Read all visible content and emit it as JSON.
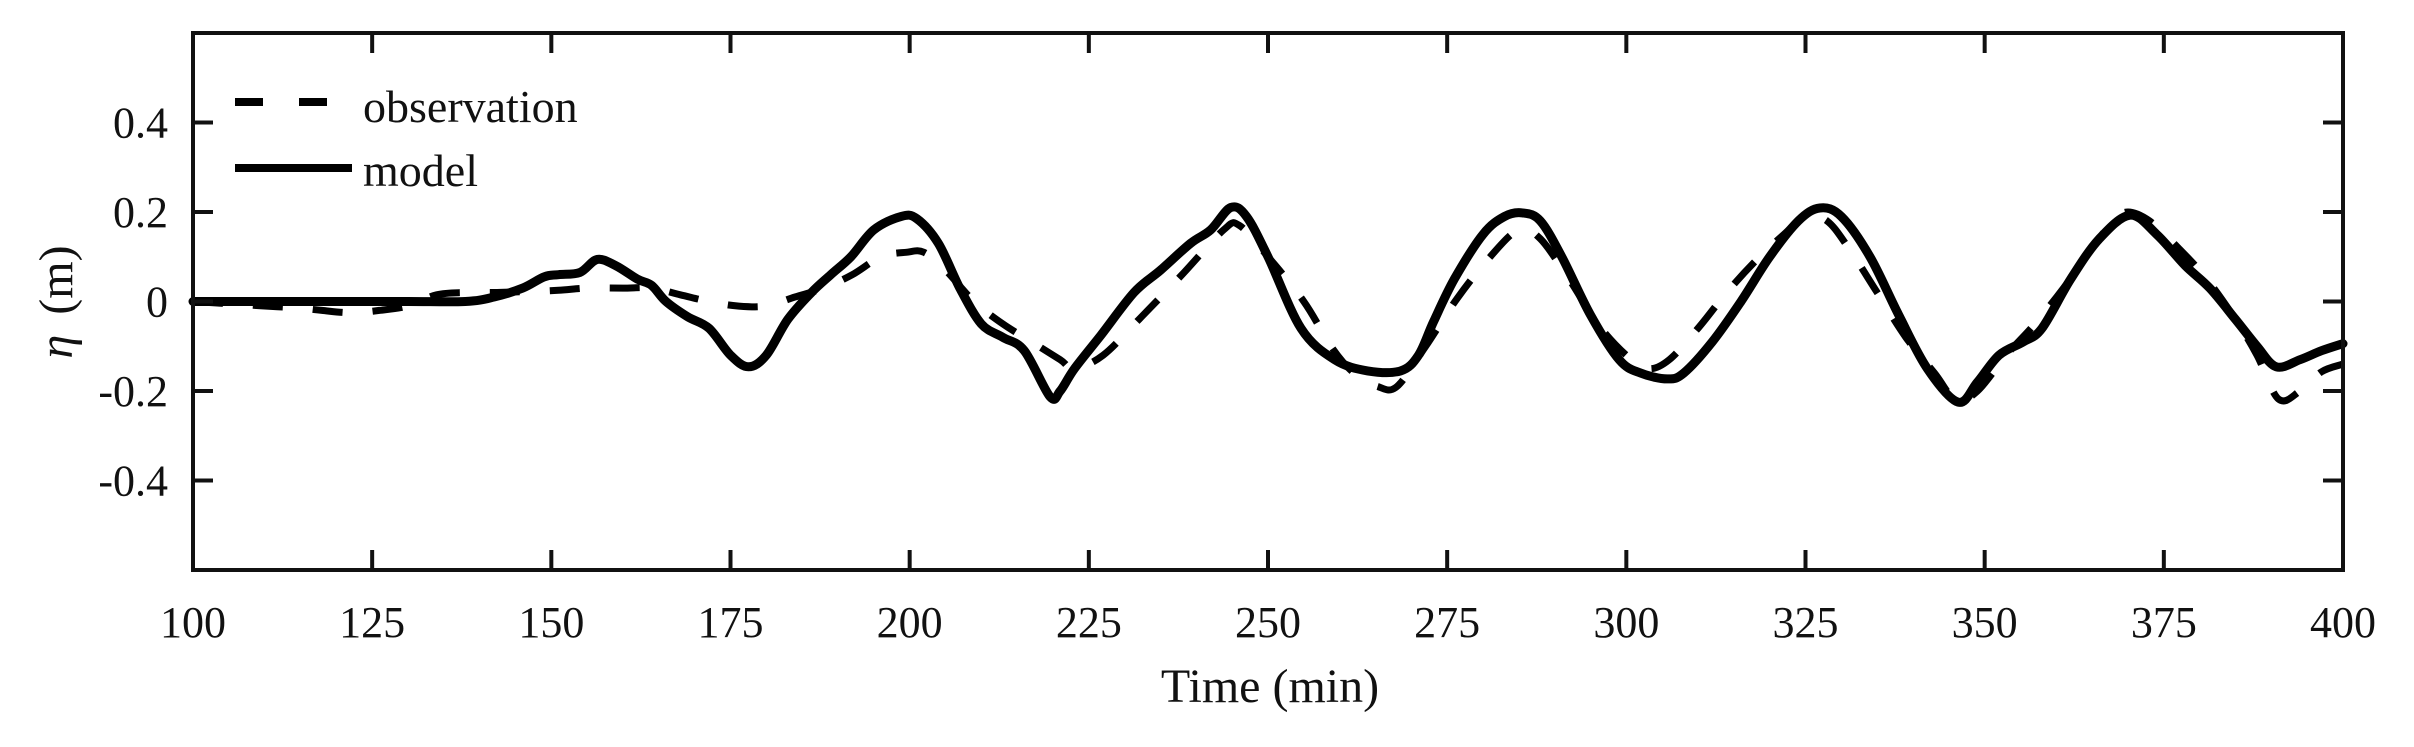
{
  "chart_data": {
    "type": "line",
    "title": "",
    "xlabel": "Time (min)",
    "ylabel_symbol": "η",
    "ylabel_unit": "(m)",
    "ylabel": "η (m)",
    "xlim": [
      100,
      400
    ],
    "ylim": [
      -0.6,
      0.6
    ],
    "xticks": [
      100,
      125,
      150,
      175,
      200,
      225,
      250,
      275,
      300,
      325,
      350,
      375,
      400
    ],
    "xtick_labels": [
      "100",
      "125",
      "150",
      "175",
      "200",
      "225",
      "250",
      "275",
      "300",
      "325",
      "350",
      "375",
      "400"
    ],
    "yticks": [
      -0.4,
      -0.2,
      0,
      0.2,
      0.4
    ],
    "ytick_labels": [
      "-0.4",
      "-0.2",
      "0",
      "0.2",
      "0.4"
    ],
    "grid": false,
    "legend_position": "upper left",
    "series": [
      {
        "name": "observation",
        "style": "dashed",
        "color": "#000000",
        "x": [
          100,
          105,
          110,
          115,
          118,
          122,
          126,
          130,
          134,
          138,
          142,
          146,
          151,
          155,
          160,
          164,
          168,
          172,
          176,
          180,
          184,
          188,
          192,
          196,
          199.5,
          202,
          205,
          209,
          213,
          217,
          221,
          223,
          227,
          232,
          238,
          243.8,
          246,
          250,
          255,
          259,
          262,
          265.3,
          268,
          272,
          276.4,
          281,
          285,
          288,
          292,
          296,
          300,
          303,
          306,
          310,
          314,
          318,
          322,
          325,
          328,
          331,
          335,
          339,
          343,
          346,
          349,
          353,
          357,
          361,
          365,
          368,
          370,
          373,
          377,
          381,
          385,
          388,
          391,
          394,
          397,
          400
        ],
        "y": [
          0.0,
          -0.005,
          -0.01,
          -0.015,
          -0.02,
          -0.025,
          -0.02,
          -0.01,
          0.015,
          0.02,
          0.02,
          0.022,
          0.025,
          0.03,
          0.03,
          0.03,
          0.015,
          0.0,
          -0.01,
          -0.01,
          0.01,
          0.03,
          0.06,
          0.1,
          0.11,
          0.11,
          0.07,
          0.0,
          -0.05,
          -0.09,
          -0.13,
          -0.15,
          -0.12,
          -0.04,
          0.06,
          0.16,
          0.17,
          0.1,
          0.0,
          -0.105,
          -0.16,
          -0.19,
          -0.19,
          -0.1,
          0.007,
          0.1,
          0.16,
          0.14,
          0.05,
          -0.05,
          -0.12,
          -0.15,
          -0.13,
          -0.06,
          0.02,
          0.09,
          0.15,
          0.19,
          0.18,
          0.12,
          0.02,
          -0.08,
          -0.16,
          -0.22,
          -0.2,
          -0.12,
          -0.05,
          0.03,
          0.12,
          0.18,
          0.2,
          0.18,
          0.12,
          0.05,
          -0.04,
          -0.12,
          -0.218,
          -0.2,
          -0.157,
          -0.14
        ]
      },
      {
        "name": "model",
        "style": "solid",
        "color": "#000000",
        "x": [
          100,
          110,
          120,
          130,
          138,
          142,
          146,
          149,
          151,
          154,
          156.4,
          159,
          162,
          164,
          166,
          169,
          172,
          175,
          177.5,
          180,
          183,
          186.3,
          189,
          191.8,
          195,
          198.8,
          201,
          204,
          207,
          210,
          213,
          216,
          219.6,
          221,
          223,
          226.7,
          231.3,
          235,
          239.2,
          242,
          244.8,
          247,
          250,
          254.6,
          259.3,
          263.9,
          268.5,
          271,
          273.1,
          276,
          280,
          283,
          285.5,
          288,
          291,
          295,
          299,
          302,
          305.7,
          308,
          312,
          316,
          320,
          324,
          327,
          330,
          334,
          338,
          342,
          346.3,
          349,
          352,
          355.4,
          358,
          362,
          366,
          370.3,
          374,
          378,
          381.4,
          385,
          388,
          390.7,
          394,
          397,
          400
        ],
        "y": [
          0.0,
          0.0,
          0.0,
          0.0,
          0.0,
          0.01,
          0.03,
          0.055,
          0.06,
          0.065,
          0.094,
          0.08,
          0.05,
          0.036,
          0.0,
          -0.034,
          -0.06,
          -0.12,
          -0.146,
          -0.12,
          -0.04,
          0.02,
          0.06,
          0.1,
          0.16,
          0.19,
          0.185,
          0.13,
          0.03,
          -0.05,
          -0.08,
          -0.11,
          -0.213,
          -0.2,
          -0.15,
          -0.075,
          0.02,
          0.07,
          0.13,
          0.16,
          0.21,
          0.19,
          0.1,
          -0.06,
          -0.13,
          -0.155,
          -0.155,
          -0.12,
          -0.045,
          0.05,
          0.15,
          0.19,
          0.198,
          0.18,
          0.1,
          -0.03,
          -0.13,
          -0.16,
          -0.173,
          -0.16,
          -0.09,
          0.0,
          0.1,
          0.18,
          0.209,
          0.19,
          0.1,
          -0.03,
          -0.15,
          -0.225,
          -0.18,
          -0.12,
          -0.09,
          -0.06,
          0.05,
          0.14,
          0.193,
          0.15,
          0.08,
          0.03,
          -0.04,
          -0.1,
          -0.146,
          -0.13,
          -0.11,
          -0.094
        ]
      }
    ]
  },
  "legend": {
    "items": [
      {
        "label": "observation",
        "style": "dashed"
      },
      {
        "label": "model",
        "style": "solid"
      }
    ]
  },
  "axes": {
    "xlabel": "Time (min)",
    "ylabel_symbol": "η",
    "ylabel_unit": "(m)"
  },
  "colors": {
    "line": "#000000",
    "axis": "#111111",
    "background": "#ffffff"
  }
}
